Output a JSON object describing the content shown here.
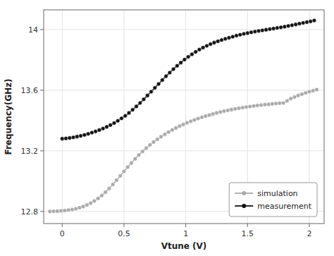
{
  "chart_data": {
    "type": "line",
    "xlabel": "Vtune (V)",
    "ylabel": "Frequency(GHz)",
    "xlim": [
      -0.15,
      2.12
    ],
    "ylim": [
      12.72,
      14.13
    ],
    "xticks": [
      0.0,
      0.5,
      1.0,
      1.5,
      2.0
    ],
    "yticks": [
      12.8,
      13.2,
      13.6,
      14.0
    ],
    "grid": true,
    "legend": "lower right",
    "series": [
      {
        "name": "simulation",
        "color": "#aaaaaa",
        "marker": "circle",
        "x": [
          -0.1,
          -0.07,
          -0.04,
          -0.01,
          0.02,
          0.05,
          0.08,
          0.11,
          0.14,
          0.17,
          0.2,
          0.23,
          0.26,
          0.29,
          0.32,
          0.35,
          0.38,
          0.41,
          0.44,
          0.47,
          0.5,
          0.53,
          0.56,
          0.59,
          0.62,
          0.65,
          0.68,
          0.71,
          0.74,
          0.77,
          0.8,
          0.83,
          0.86,
          0.89,
          0.92,
          0.95,
          0.98,
          1.01,
          1.04,
          1.07,
          1.1,
          1.13,
          1.16,
          1.19,
          1.22,
          1.25,
          1.28,
          1.31,
          1.34,
          1.37,
          1.4,
          1.43,
          1.46,
          1.49,
          1.52,
          1.55,
          1.58,
          1.61,
          1.64,
          1.67,
          1.7,
          1.73,
          1.76,
          1.79,
          1.82,
          1.85,
          1.88,
          1.91,
          1.94,
          1.97,
          2.0,
          2.03,
          2.06
        ],
        "values": [
          12.8,
          12.801,
          12.802,
          12.804,
          12.806,
          12.809,
          12.813,
          12.818,
          12.825,
          12.833,
          12.843,
          12.855,
          12.869,
          12.886,
          12.905,
          12.927,
          12.951,
          12.978,
          13.006,
          13.035,
          13.064,
          13.093,
          13.12,
          13.147,
          13.172,
          13.196,
          13.218,
          13.239,
          13.258,
          13.276,
          13.293,
          13.309,
          13.324,
          13.338,
          13.351,
          13.363,
          13.374,
          13.385,
          13.395,
          13.404,
          13.413,
          13.421,
          13.429,
          13.436,
          13.443,
          13.45,
          13.456,
          13.462,
          13.467,
          13.472,
          13.477,
          13.481,
          13.485,
          13.489,
          13.492,
          13.496,
          13.499,
          13.502,
          13.505,
          13.507,
          13.51,
          13.512,
          13.514,
          13.516,
          13.53,
          13.545,
          13.555,
          13.565,
          13.574,
          13.582,
          13.59,
          13.597,
          13.604
        ]
      },
      {
        "name": "measurement",
        "color": "#111111",
        "marker": "circle",
        "x": [
          0.0,
          0.03,
          0.06,
          0.09,
          0.12,
          0.15,
          0.18,
          0.21,
          0.24,
          0.27,
          0.3,
          0.33,
          0.36,
          0.39,
          0.42,
          0.45,
          0.48,
          0.51,
          0.54,
          0.57,
          0.6,
          0.63,
          0.66,
          0.69,
          0.72,
          0.75,
          0.78,
          0.81,
          0.84,
          0.87,
          0.9,
          0.93,
          0.96,
          0.99,
          1.02,
          1.05,
          1.08,
          1.11,
          1.14,
          1.17,
          1.2,
          1.23,
          1.26,
          1.29,
          1.32,
          1.35,
          1.38,
          1.41,
          1.44,
          1.47,
          1.5,
          1.53,
          1.56,
          1.59,
          1.62,
          1.65,
          1.68,
          1.71,
          1.74,
          1.77,
          1.8,
          1.83,
          1.86,
          1.89,
          1.92,
          1.95,
          1.98,
          2.01,
          2.04
        ],
        "values": [
          13.28,
          13.282,
          13.285,
          13.289,
          13.294,
          13.299,
          13.305,
          13.312,
          13.32,
          13.328,
          13.337,
          13.347,
          13.358,
          13.37,
          13.383,
          13.398,
          13.414,
          13.431,
          13.45,
          13.471,
          13.493,
          13.516,
          13.54,
          13.565,
          13.59,
          13.616,
          13.641,
          13.667,
          13.692,
          13.716,
          13.739,
          13.761,
          13.782,
          13.802,
          13.82,
          13.837,
          13.853,
          13.868,
          13.881,
          13.893,
          13.904,
          13.914,
          13.923,
          13.931,
          13.939,
          13.946,
          13.953,
          13.96,
          13.966,
          13.972,
          13.977,
          13.982,
          13.987,
          13.991,
          13.995,
          13.999,
          14.003,
          14.007,
          14.011,
          14.015,
          14.019,
          14.024,
          14.029,
          14.034,
          14.039,
          14.044,
          14.049,
          14.054,
          14.06
        ]
      }
    ]
  }
}
